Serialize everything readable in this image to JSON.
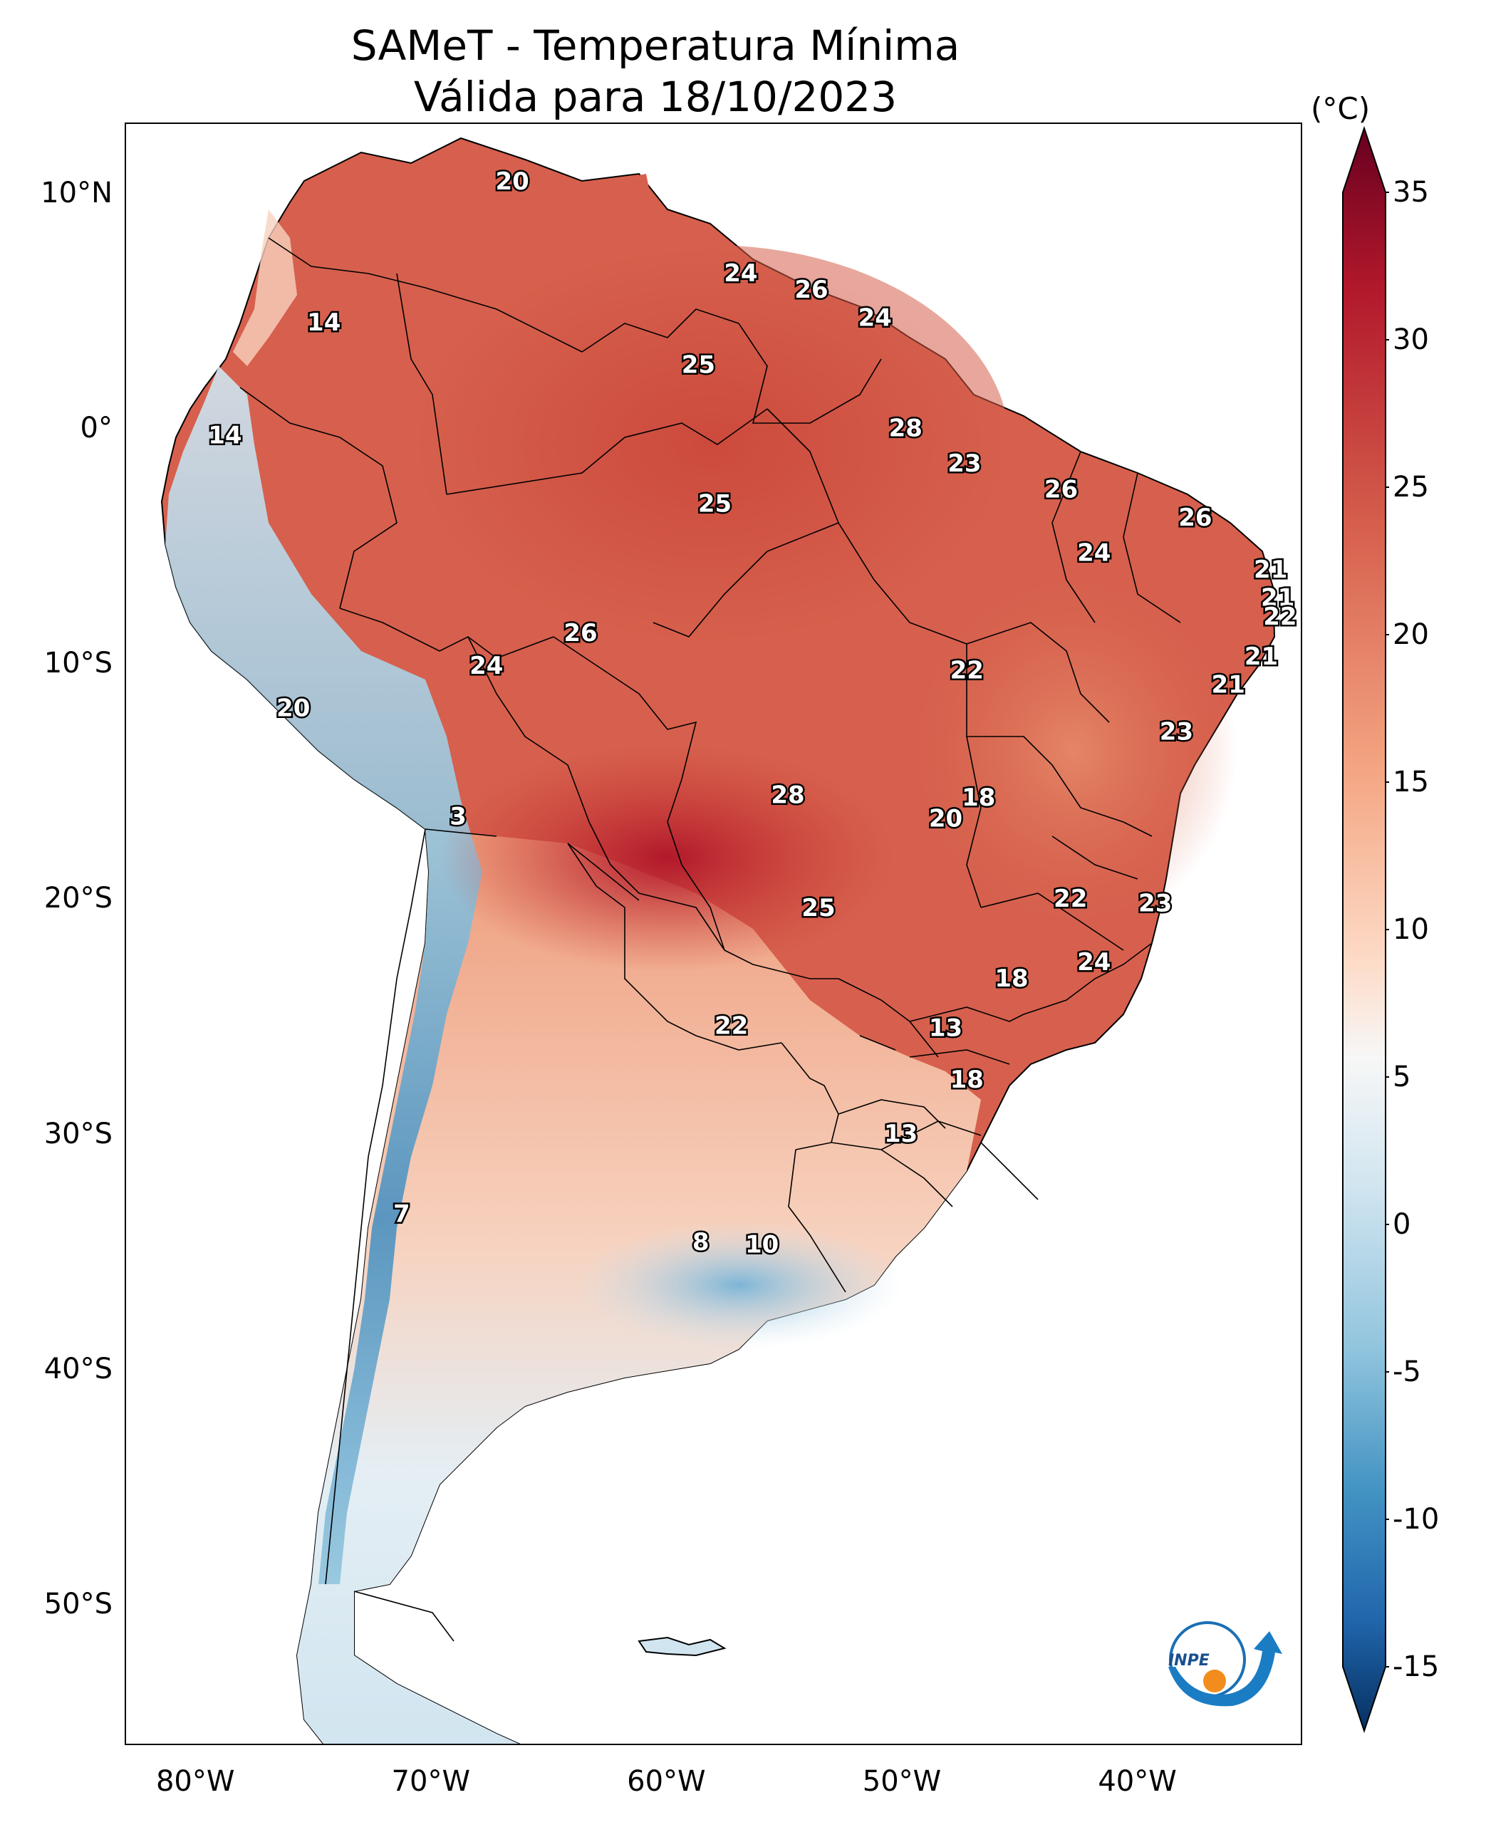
{
  "title": {
    "line1": "SAMeT - Temperatura Mínima",
    "line2": "Válida para 18/10/2023"
  },
  "axes": {
    "lat_labels": [
      "10°N",
      "0°",
      "10°S",
      "20°S",
      "30°S",
      "40°S",
      "50°S"
    ],
    "lat_values": [
      10,
      0,
      -10,
      -20,
      -30,
      -40,
      -50
    ],
    "lon_labels": [
      "80°W",
      "70°W",
      "60°W",
      "50°W",
      "40°W"
    ],
    "lon_values": [
      -80,
      -70,
      -60,
      -50,
      -40
    ],
    "lon_range": [
      -83,
      -33
    ],
    "lat_range": [
      -56,
      13
    ]
  },
  "colorbar": {
    "unit": "(°C)",
    "ticks": [
      "35",
      "30",
      "25",
      "20",
      "15",
      "10",
      "5",
      "0",
      "-5",
      "-10",
      "-15"
    ],
    "tick_values": [
      35,
      30,
      25,
      20,
      15,
      10,
      5,
      0,
      -5,
      -10,
      -15
    ],
    "range": [
      -15,
      35
    ],
    "colormap": [
      "#053061",
      "#2166ac",
      "#4393c3",
      "#92c5de",
      "#d1e5f0",
      "#f7f7f7",
      "#fddbc7",
      "#f4a582",
      "#d6604d",
      "#b2182b",
      "#67001f"
    ]
  },
  "map_labels": [
    {
      "text": "20",
      "lon": -66.6,
      "lat": 10.5
    },
    {
      "text": "14",
      "lon": -74.6,
      "lat": 4.5
    },
    {
      "text": "24",
      "lon": -56.9,
      "lat": 6.6
    },
    {
      "text": "26",
      "lon": -53.9,
      "lat": 5.9
    },
    {
      "text": "24",
      "lon": -51.2,
      "lat": 4.7
    },
    {
      "text": "25",
      "lon": -58.7,
      "lat": 2.7
    },
    {
      "text": "28",
      "lon": -49.9,
      "lat": 0.0
    },
    {
      "text": "14",
      "lon": -78.8,
      "lat": -0.3
    },
    {
      "text": "23",
      "lon": -47.4,
      "lat": -1.5
    },
    {
      "text": "26",
      "lon": -43.3,
      "lat": -2.6
    },
    {
      "text": "25",
      "lon": -58.0,
      "lat": -3.2
    },
    {
      "text": "26",
      "lon": -37.6,
      "lat": -3.8
    },
    {
      "text": "24",
      "lon": -41.9,
      "lat": -5.3
    },
    {
      "text": "21",
      "lon": -34.4,
      "lat": -6.0
    },
    {
      "text": "21",
      "lon": -34.1,
      "lat": -7.2
    },
    {
      "text": "22",
      "lon": -34.0,
      "lat": -8.0
    },
    {
      "text": "26",
      "lon": -63.7,
      "lat": -8.7
    },
    {
      "text": "21",
      "lon": -34.8,
      "lat": -9.7
    },
    {
      "text": "24",
      "lon": -67.7,
      "lat": -10.1
    },
    {
      "text": "22",
      "lon": -47.3,
      "lat": -10.3
    },
    {
      "text": "21",
      "lon": -36.2,
      "lat": -10.9
    },
    {
      "text": "20",
      "lon": -75.9,
      "lat": -11.9
    },
    {
      "text": "23",
      "lon": -38.4,
      "lat": -12.9
    },
    {
      "text": "28",
      "lon": -54.9,
      "lat": -15.6
    },
    {
      "text": "18",
      "lon": -46.8,
      "lat": -15.7
    },
    {
      "text": "20",
      "lon": -48.2,
      "lat": -16.6
    },
    {
      "text": "3",
      "lon": -68.9,
      "lat": -16.5
    },
    {
      "text": "22",
      "lon": -42.9,
      "lat": -20.0
    },
    {
      "text": "23",
      "lon": -39.3,
      "lat": -20.2
    },
    {
      "text": "25",
      "lon": -53.6,
      "lat": -20.4
    },
    {
      "text": "24",
      "lon": -41.9,
      "lat": -22.7
    },
    {
      "text": "18",
      "lon": -45.4,
      "lat": -23.4
    },
    {
      "text": "22",
      "lon": -57.3,
      "lat": -25.4
    },
    {
      "text": "13",
      "lon": -48.2,
      "lat": -25.5
    },
    {
      "text": "18",
      "lon": -47.3,
      "lat": -27.7
    },
    {
      "text": "13",
      "lon": -50.1,
      "lat": -30.0
    },
    {
      "text": "7",
      "lon": -71.3,
      "lat": -33.4
    },
    {
      "text": "8",
      "lon": -58.6,
      "lat": -34.6
    },
    {
      "text": "10",
      "lon": -56.0,
      "lat": -34.7
    }
  ],
  "logo": {
    "text": "INPE"
  }
}
